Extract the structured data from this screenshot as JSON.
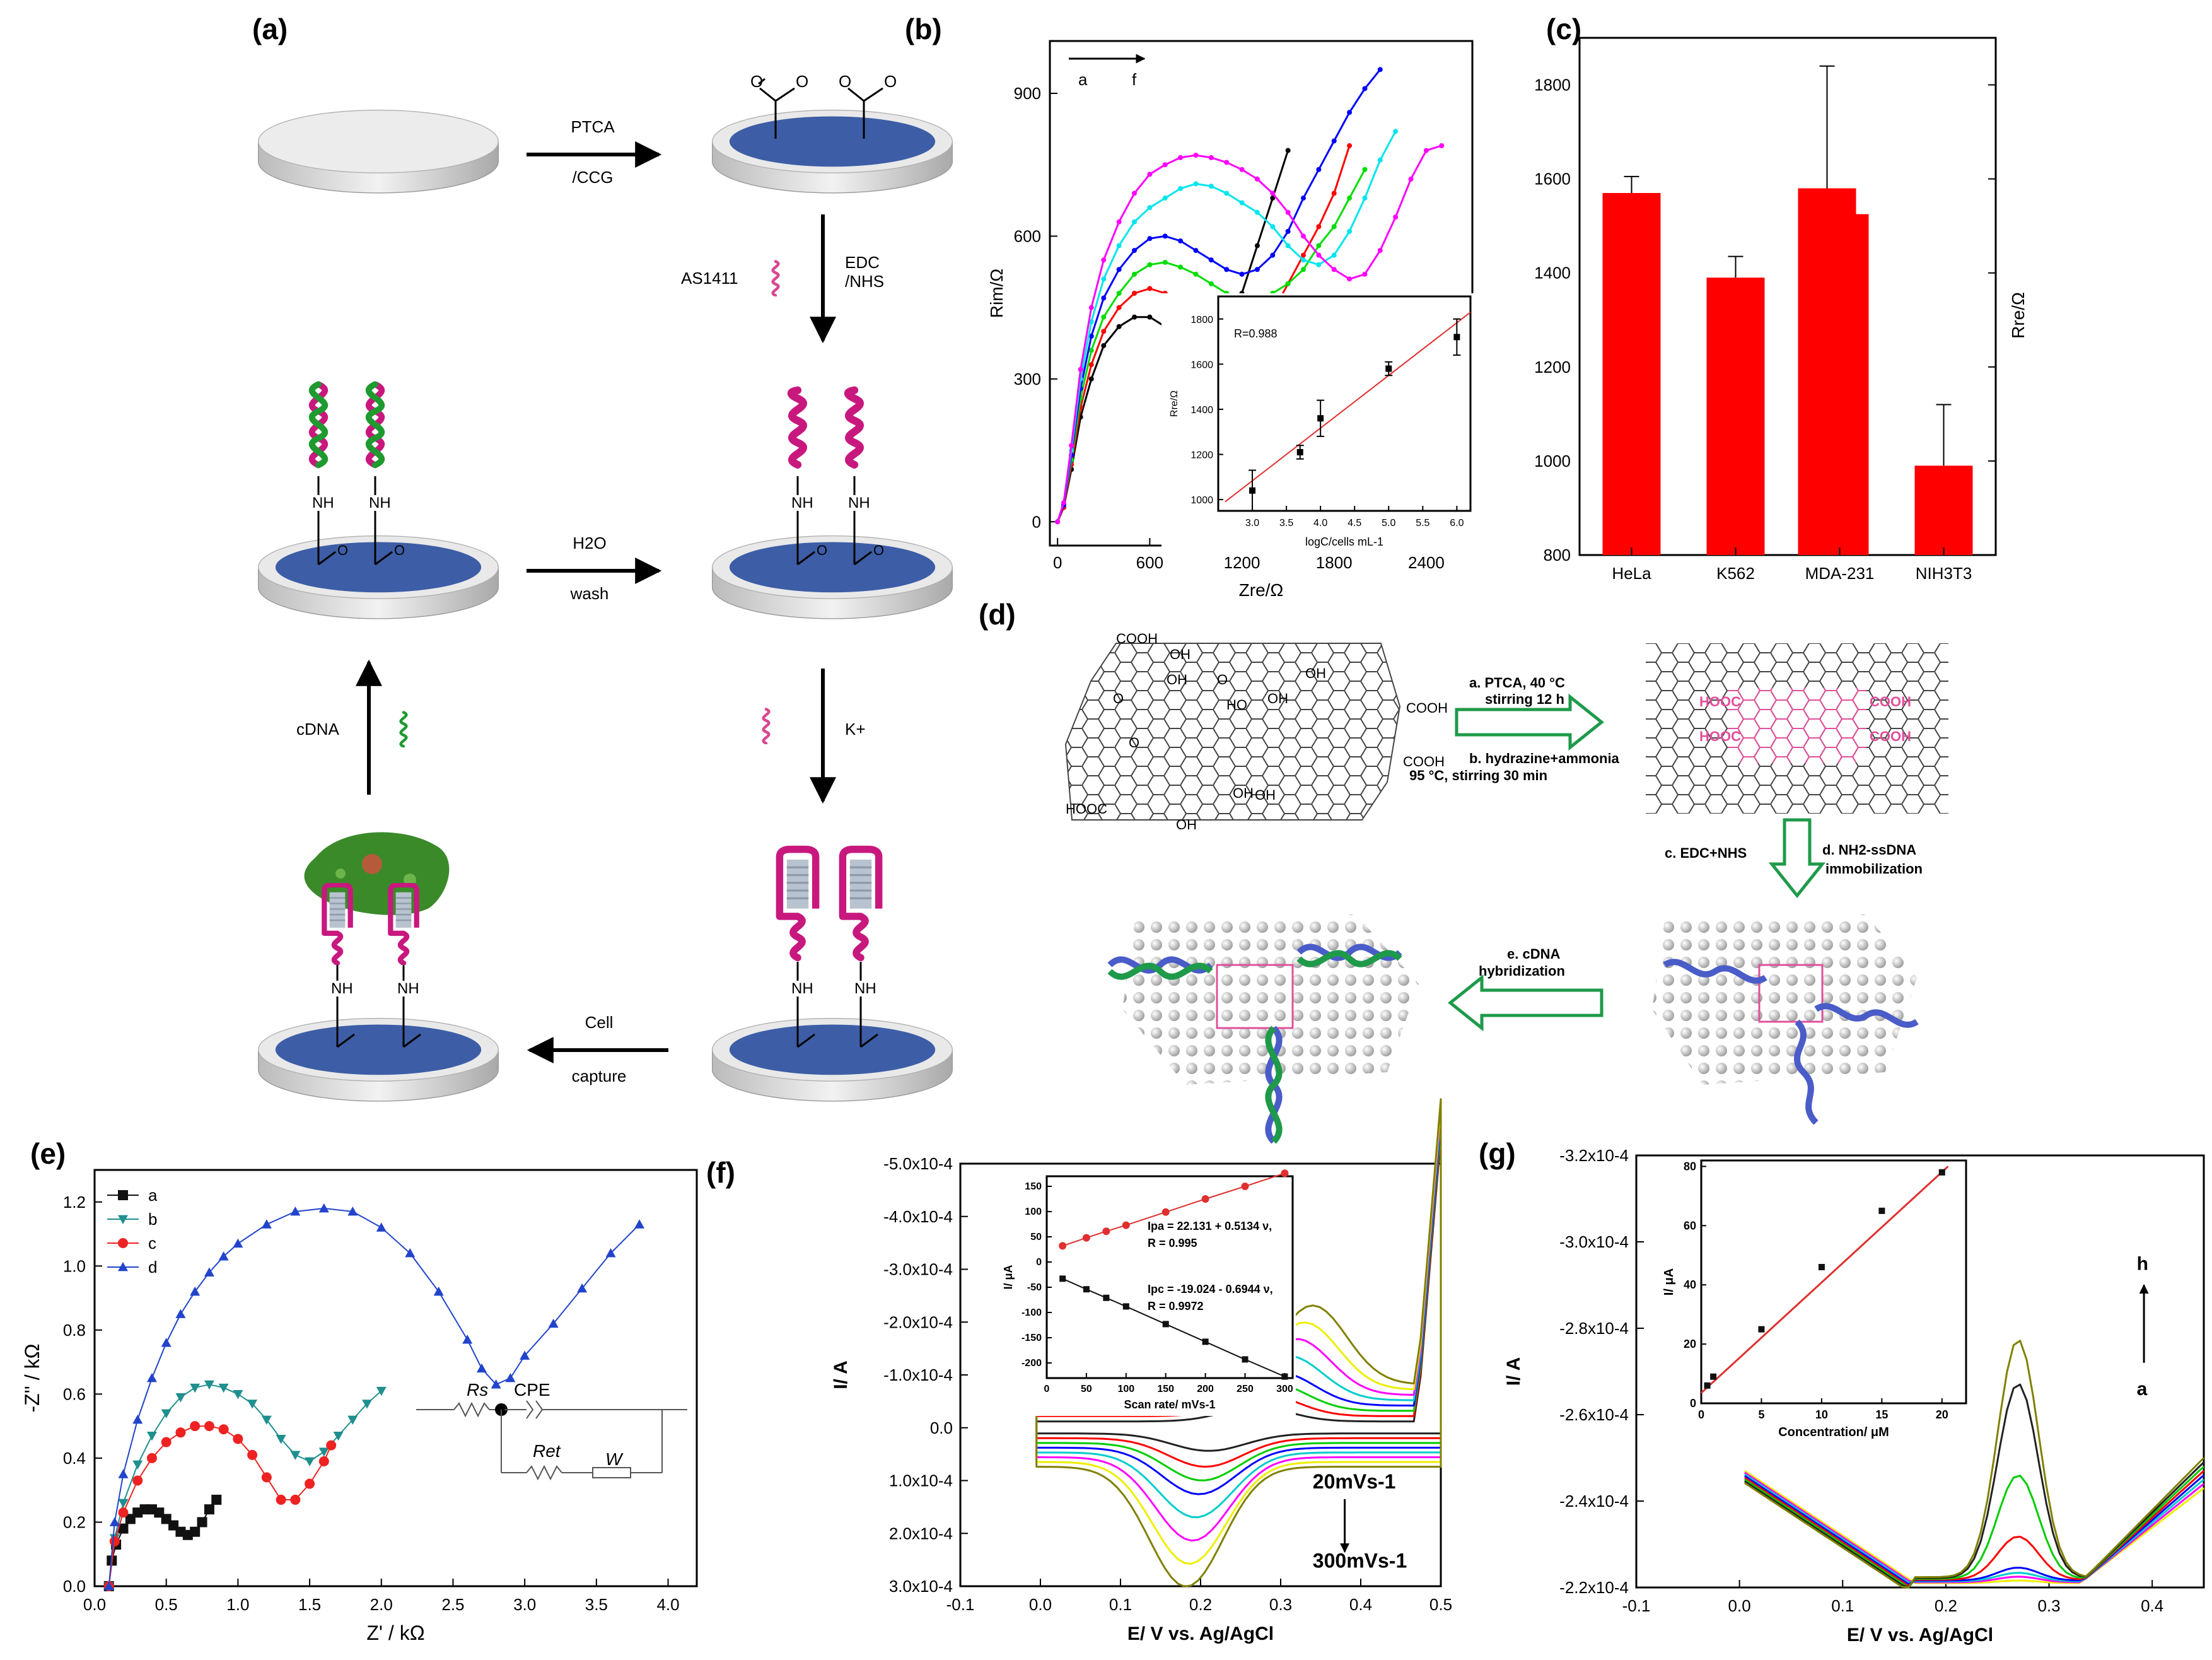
{
  "panel_labels": [
    "(a)",
    "(b)",
    "(c)",
    "(d)",
    "(e)",
    "(f)",
    "(g)"
  ],
  "scheme_a": {
    "step1_top": "PTCA",
    "step1_bottom": "/CCG",
    "step2_left": "AS1411",
    "step2_right_top": "EDC",
    "step2_right_bottom": "/NHS",
    "step3_top": "H2O",
    "step3_bottom": "wash",
    "step4_right": "K+",
    "step5_top": "Cell",
    "step5_bottom": "capture",
    "step6_left": "cDNA",
    "nh": "NH",
    "o": "O"
  },
  "scheme_d": {
    "step_a": "a. PTCA, 40 °C",
    "step_a2": "stirring 12 h",
    "step_b": "b. hydrazine+ammonia",
    "step_b2": "95 °C, stirring 30 min",
    "step_c": "c. EDC+NHS",
    "step_d": "d. NH2-ssDNA",
    "step_d2": "immobilization",
    "step_e": "e. cDNA",
    "step_e2": "hybridization",
    "go_labels": [
      "COOH",
      "COOH",
      "COOH",
      "HOOC",
      "OH",
      "OH",
      "OH",
      "HO",
      "OH",
      "O",
      "O",
      "O",
      "OH",
      "OH",
      "OH"
    ],
    "rgo_labels": [
      "HOOC",
      "HOOC",
      "COOH",
      "COOH"
    ]
  },
  "chart_data": [
    {
      "id": "b",
      "type": "line",
      "xlabel": "Zre/Ω",
      "ylabel": "Rim/Ω",
      "xlim": [
        -50,
        2700
      ],
      "ylim": [
        -50,
        1010
      ],
      "xticks": [
        0,
        600,
        1200,
        1800,
        2400
      ],
      "yticks": [
        0,
        300,
        600,
        900
      ],
      "annotation": {
        "start": "a",
        "end": "f"
      },
      "colors": {
        "a": "#000000",
        "b": "#ff0000",
        "c": "#00dd00",
        "d": "#0000ff",
        "e": "#00e5ee",
        "f": "#ff00ff"
      },
      "series": [
        {
          "name": "a",
          "x": [
            0,
            40,
            90,
            150,
            220,
            300,
            400,
            500,
            600,
            700,
            800,
            900,
            1000,
            1100,
            1200,
            1300,
            1400,
            1500
          ],
          "y": [
            0,
            30,
            110,
            220,
            300,
            370,
            410,
            430,
            430,
            410,
            380,
            360,
            370,
            410,
            480,
            580,
            680,
            780
          ]
        },
        {
          "name": "b",
          "x": [
            0,
            40,
            90,
            150,
            220,
            300,
            400,
            500,
            600,
            700,
            800,
            900,
            1000,
            1100,
            1200,
            1300,
            1400,
            1500,
            1600,
            1700,
            1800,
            1900
          ],
          "y": [
            0,
            30,
            120,
            240,
            330,
            400,
            450,
            480,
            490,
            480,
            460,
            430,
            410,
            400,
            400,
            410,
            440,
            500,
            560,
            620,
            690,
            790
          ]
        },
        {
          "name": "c",
          "x": [
            0,
            40,
            90,
            150,
            220,
            300,
            400,
            500,
            600,
            700,
            800,
            900,
            1000,
            1100,
            1200,
            1300,
            1400,
            1500,
            1600,
            1700,
            1800,
            1900,
            2000
          ],
          "y": [
            0,
            35,
            130,
            260,
            360,
            430,
            480,
            520,
            540,
            545,
            535,
            520,
            500,
            480,
            470,
            470,
            480,
            500,
            530,
            580,
            620,
            680,
            740
          ]
        },
        {
          "name": "d",
          "x": [
            0,
            40,
            90,
            150,
            220,
            300,
            400,
            500,
            600,
            700,
            800,
            900,
            1000,
            1100,
            1200,
            1300,
            1400,
            1500,
            1600,
            1700,
            1800,
            1900,
            2000,
            2100
          ],
          "y": [
            0,
            35,
            140,
            280,
            390,
            470,
            530,
            570,
            595,
            600,
            590,
            570,
            550,
            530,
            520,
            530,
            560,
            610,
            680,
            740,
            800,
            860,
            910,
            950
          ]
        },
        {
          "name": "e",
          "x": [
            0,
            40,
            90,
            150,
            220,
            300,
            400,
            500,
            600,
            700,
            800,
            900,
            1000,
            1100,
            1200,
            1300,
            1400,
            1500,
            1600,
            1700,
            1800,
            1900,
            2000,
            2100,
            2200
          ],
          "y": [
            0,
            40,
            150,
            300,
            420,
            510,
            580,
            630,
            660,
            680,
            700,
            710,
            705,
            690,
            670,
            650,
            620,
            580,
            550,
            540,
            560,
            610,
            680,
            760,
            820
          ]
        },
        {
          "name": "f",
          "x": [
            0,
            40,
            90,
            150,
            220,
            300,
            400,
            500,
            600,
            700,
            800,
            900,
            1000,
            1100,
            1200,
            1300,
            1400,
            1500,
            1600,
            1700,
            1800,
            1900,
            2000,
            2100,
            2200,
            2300,
            2400,
            2500
          ],
          "y": [
            0,
            40,
            160,
            320,
            450,
            550,
            630,
            690,
            730,
            750,
            765,
            770,
            765,
            755,
            740,
            720,
            690,
            650,
            600,
            560,
            530,
            510,
            520,
            570,
            640,
            720,
            780,
            790
          ]
        }
      ]
    },
    {
      "id": "b-inset",
      "type": "scatter",
      "xlabel": "logC/cells mL-1",
      "ylabel": "Rre/Ω",
      "annotation": "R=0.988",
      "xlim": [
        2.5,
        6.2
      ],
      "ylim": [
        950,
        1900
      ],
      "xticks": [
        3.0,
        3.5,
        4.0,
        4.5,
        5.0,
        5.5,
        6.0
      ],
      "yticks": [
        1000,
        1200,
        1400,
        1600,
        1800
      ],
      "x": [
        3.0,
        3.7,
        4.0,
        5.0,
        6.0
      ],
      "y": [
        1040,
        1210,
        1360,
        1580,
        1720
      ],
      "err": [
        90,
        30,
        80,
        30,
        80
      ],
      "fit": {
        "x": [
          2.6,
          6.2
        ],
        "y": [
          990,
          1830
        ]
      }
    },
    {
      "id": "c",
      "type": "bar",
      "categories": [
        "HeLa",
        "K562",
        "MDA-231",
        "NIH3T3"
      ],
      "values": [
        1570,
        1390,
        1580,
        990
      ],
      "second_bar": {
        "category": "MDA-231",
        "value": 1525
      },
      "errors": [
        35,
        45,
        260,
        130
      ],
      "ylabel": "Rre/Ω",
      "ylim": [
        800,
        1900
      ],
      "yticks": [
        800,
        1000,
        1200,
        1400,
        1600,
        1800
      ],
      "color": "#ff0000"
    },
    {
      "id": "e",
      "type": "scatter",
      "xlabel": "Z' / kΩ",
      "ylabel": "-Z'' / kΩ",
      "xlim": [
        0,
        4.2
      ],
      "ylim": [
        0,
        1.3
      ],
      "xticks": [
        0.0,
        0.5,
        1.0,
        1.5,
        2.0,
        2.5,
        3.0,
        3.5,
        4.0
      ],
      "yticks": [
        0.0,
        0.2,
        0.4,
        0.6,
        0.8,
        1.0,
        1.2
      ],
      "legend": [
        "a",
        "b",
        "c",
        "d"
      ],
      "circuit": {
        "rs": "Rs",
        "cpe": "CPE",
        "ret": "Ret",
        "w": "W"
      },
      "series": [
        {
          "name": "a",
          "color": "#111111",
          "marker": "square",
          "x": [
            0.1,
            0.12,
            0.15,
            0.2,
            0.25,
            0.3,
            0.35,
            0.4,
            0.45,
            0.5,
            0.55,
            0.6,
            0.65,
            0.7,
            0.75,
            0.8,
            0.85
          ],
          "y": [
            0.0,
            0.08,
            0.13,
            0.18,
            0.21,
            0.23,
            0.24,
            0.24,
            0.23,
            0.21,
            0.19,
            0.17,
            0.16,
            0.17,
            0.2,
            0.24,
            0.27
          ]
        },
        {
          "name": "b",
          "color": "#1f8f8f",
          "marker": "triangle-down",
          "x": [
            0.1,
            0.14,
            0.2,
            0.3,
            0.4,
            0.5,
            0.6,
            0.7,
            0.8,
            0.9,
            1.0,
            1.1,
            1.2,
            1.3,
            1.4,
            1.5,
            1.6,
            1.7,
            1.8,
            1.9,
            2.0
          ],
          "y": [
            0.0,
            0.15,
            0.26,
            0.38,
            0.47,
            0.54,
            0.59,
            0.62,
            0.63,
            0.62,
            0.6,
            0.57,
            0.52,
            0.46,
            0.41,
            0.39,
            0.42,
            0.47,
            0.52,
            0.57,
            0.61
          ]
        },
        {
          "name": "c",
          "color": "#ee2222",
          "marker": "circle",
          "x": [
            0.1,
            0.14,
            0.2,
            0.3,
            0.4,
            0.5,
            0.6,
            0.7,
            0.8,
            0.9,
            1.0,
            1.1,
            1.2,
            1.3,
            1.4,
            1.5,
            1.6,
            1.65
          ],
          "y": [
            0.0,
            0.14,
            0.23,
            0.33,
            0.4,
            0.45,
            0.48,
            0.5,
            0.5,
            0.49,
            0.46,
            0.41,
            0.34,
            0.27,
            0.27,
            0.32,
            0.39,
            0.44
          ]
        },
        {
          "name": "d",
          "color": "#2244cc",
          "marker": "triangle-up",
          "x": [
            0.1,
            0.14,
            0.2,
            0.3,
            0.4,
            0.5,
            0.6,
            0.7,
            0.8,
            0.9,
            1.0,
            1.2,
            1.4,
            1.6,
            1.8,
            2.0,
            2.2,
            2.4,
            2.6,
            2.7,
            2.8,
            2.9,
            3.0,
            3.2,
            3.4,
            3.6,
            3.8
          ],
          "y": [
            0.0,
            0.2,
            0.35,
            0.52,
            0.65,
            0.76,
            0.85,
            0.92,
            0.98,
            1.03,
            1.07,
            1.13,
            1.17,
            1.18,
            1.17,
            1.12,
            1.04,
            0.92,
            0.77,
            0.68,
            0.63,
            0.65,
            0.72,
            0.82,
            0.93,
            1.04,
            1.13
          ]
        }
      ]
    },
    {
      "id": "f",
      "type": "line",
      "xlabel": "E/ V vs. Ag/AgCl",
      "ylabel": "I/ A",
      "xlim": [
        -0.1,
        0.5
      ],
      "ylim": [
        0.0003,
        -0.0005
      ],
      "xticks": [
        -0.1,
        0.0,
        0.1,
        0.2,
        0.3,
        0.4,
        0.5
      ],
      "ytick_labels": [
        "-5.0x10-4",
        "-4.0x10-4",
        "-3.0x10-4",
        "-2.0x10-4",
        "-1.0x10-4",
        "0.0",
        "1.0x10-4",
        "2.0x10-4",
        "3.0x10-4"
      ],
      "annotation_start": "20mVs-1",
      "annotation_end": "300mVs-1",
      "scan_rates": [
        20,
        50,
        75,
        100,
        150,
        200,
        250,
        300
      ],
      "colors": [
        "#222222",
        "#ff0000",
        "#00cc00",
        "#0000ff",
        "#00cccc",
        "#ff00ff",
        "#eeee00",
        "#808000"
      ],
      "peak_anodic_uA": [
        32,
        48,
        61,
        73,
        99,
        125,
        150,
        176
      ],
      "peak_cathodic_uA": [
        -33,
        -54,
        -71,
        -88,
        -123,
        -158,
        -193,
        -227
      ]
    },
    {
      "id": "f-inset",
      "type": "scatter",
      "xlabel": "Scan rate/ mVs-1",
      "ylabel": "I/ μA",
      "xlim": [
        0,
        310
      ],
      "ylim": [
        -230,
        170
      ],
      "xticks": [
        0,
        50,
        100,
        150,
        200,
        250,
        300
      ],
      "yticks": [
        -200,
        -150,
        -100,
        -50,
        0,
        50,
        100,
        150
      ],
      "eq_pa": "Ipa = 22.131 + 0.5134 ν,",
      "r_pa": "R = 0.995",
      "eq_pc": "Ipc = -19.024 - 0.6944 ν,",
      "r_pc": "R = 0.9972",
      "x": [
        20,
        50,
        75,
        100,
        150,
        200,
        250,
        300
      ],
      "ipa": [
        32,
        48,
        61,
        73,
        99,
        125,
        150,
        176
      ],
      "ipc": [
        -33,
        -54,
        -71,
        -88,
        -123,
        -158,
        -193,
        -227
      ]
    },
    {
      "id": "g",
      "type": "line",
      "xlabel": "E/ V vs. Ag/AgCl",
      "ylabel": "I/ A",
      "xlim": [
        -0.1,
        0.45
      ],
      "ylim": [
        -0.00022,
        -0.00032
      ],
      "xticks": [
        -0.1,
        0.0,
        0.1,
        0.2,
        0.3,
        0.4
      ],
      "ytick_labels": [
        "-3.2x10-4",
        "-3.0x10-4",
        "-2.8x10-4",
        "-2.6x10-4",
        "-2.4x10-4",
        "-2.2x10-4"
      ],
      "annotation_start": "a",
      "annotation_end": "h",
      "colors": [
        "#eeee00",
        "#ff00ff",
        "#00cccc",
        "#0000ff",
        "#ff0000",
        "#00cc00",
        "#222222",
        "#808000"
      ],
      "peak_heights": [
        6e-07,
        1.3e-06,
        2e-06,
        3e-06,
        1e-05,
        2.4e-05,
        4.5e-05,
        5.5e-05
      ]
    },
    {
      "id": "g-inset",
      "type": "scatter",
      "xlabel": "Concentration/ μM",
      "ylabel": "I/ μA",
      "xlim": [
        0,
        22
      ],
      "ylim": [
        0,
        82
      ],
      "xticks": [
        0,
        5,
        10,
        15,
        20
      ],
      "yticks": [
        0,
        20,
        40,
        60,
        80
      ],
      "x": [
        0.5,
        1,
        5,
        10,
        15,
        20
      ],
      "y": [
        6,
        9,
        25,
        46,
        65,
        78
      ],
      "fit": {
        "x": [
          0,
          20.5
        ],
        "y": [
          3.5,
          80
        ]
      }
    }
  ]
}
